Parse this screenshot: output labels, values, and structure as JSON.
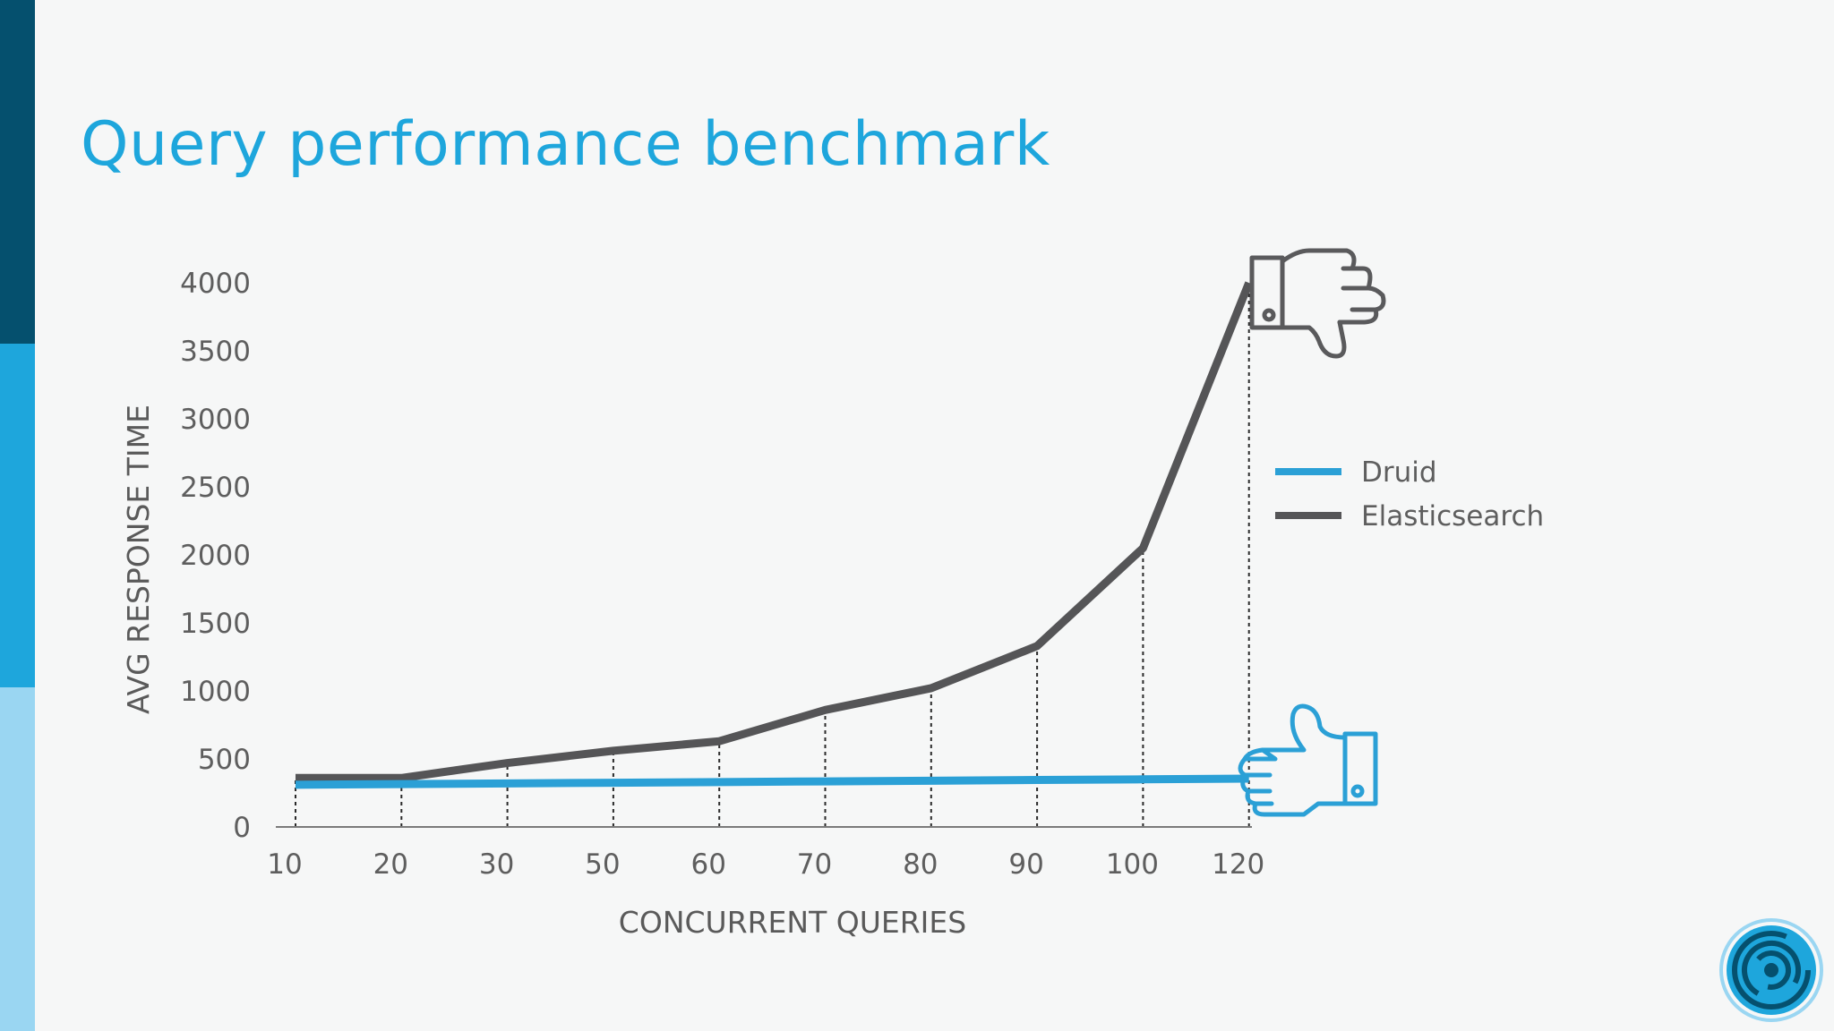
{
  "slide": {
    "title": "Query performance benchmark"
  },
  "colors": {
    "band_dark": "#05506e",
    "band_mid": "#1ea6dc",
    "band_light": "#9ad6f2",
    "title": "#1ea6dc",
    "druid": "#2ba0d6",
    "elasticsearch": "#555557",
    "axis": "#7a7a7a",
    "icon_bad": "#5a5a5c",
    "icon_good": "#2ba0d6"
  },
  "icons": {
    "bad": "thumbs-down-icon",
    "good": "thumbs-up-icon",
    "logo": "maze-logo-icon"
  },
  "chart_data": {
    "type": "line",
    "title": "",
    "xlabel": "CONCURRENT QUERIES",
    "ylabel": "AVG RESPONSE TIME",
    "categories": [
      "10",
      "20",
      "30",
      "50",
      "60",
      "70",
      "80",
      "90",
      "100",
      "120"
    ],
    "yticks": [
      "0",
      "500",
      "1000",
      "1500",
      "2000",
      "2500",
      "3000",
      "3500",
      "4000"
    ],
    "ylim": [
      0,
      4000
    ],
    "grid": false,
    "drop_lines": "dotted vertical lines from each category to the Elasticsearch line",
    "legend_position": "right",
    "series": [
      {
        "name": "Druid",
        "color": "#2ba0d6",
        "values": [
          310,
          315,
          320,
          325,
          330,
          335,
          340,
          345,
          350,
          355
        ]
      },
      {
        "name": "Elasticsearch",
        "color": "#555557",
        "values": [
          360,
          360,
          470,
          560,
          630,
          860,
          1020,
          1330,
          2050,
          4000
        ]
      }
    ]
  }
}
